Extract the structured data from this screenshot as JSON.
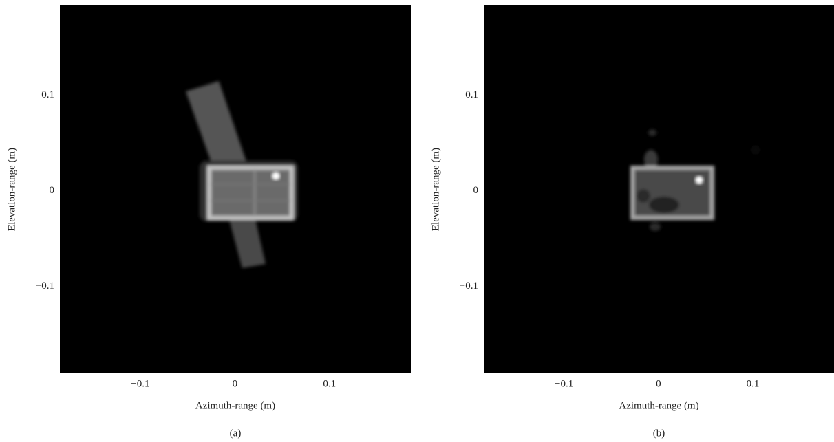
{
  "chart_data": [
    {
      "type": "image",
      "caption": "(a)",
      "xlabel": "Azimuth-range (m)",
      "ylabel": "Elevation-range (m)",
      "xlim": [
        -0.185,
        0.186
      ],
      "ylim": [
        -0.191,
        0.194
      ],
      "xticks": [
        {
          "value": -0.1,
          "label": "−0.1"
        },
        0,
        0.1
      ],
      "yticks": [
        {
          "value": -0.1,
          "label": "−0.1"
        },
        0,
        0.1
      ]
    },
    {
      "type": "image",
      "caption": "(b)",
      "xlabel": "Azimuth-range (m)",
      "ylabel": "Elevation-range (m)",
      "xlim": [
        -0.185,
        0.186
      ],
      "ylim": [
        -0.191,
        0.194
      ],
      "xticks": [
        {
          "value": -0.1,
          "label": "−0.1"
        },
        0,
        0.1
      ],
      "yticks": [
        {
          "value": -0.1,
          "label": "−0.1"
        },
        0,
        0.1
      ]
    }
  ]
}
